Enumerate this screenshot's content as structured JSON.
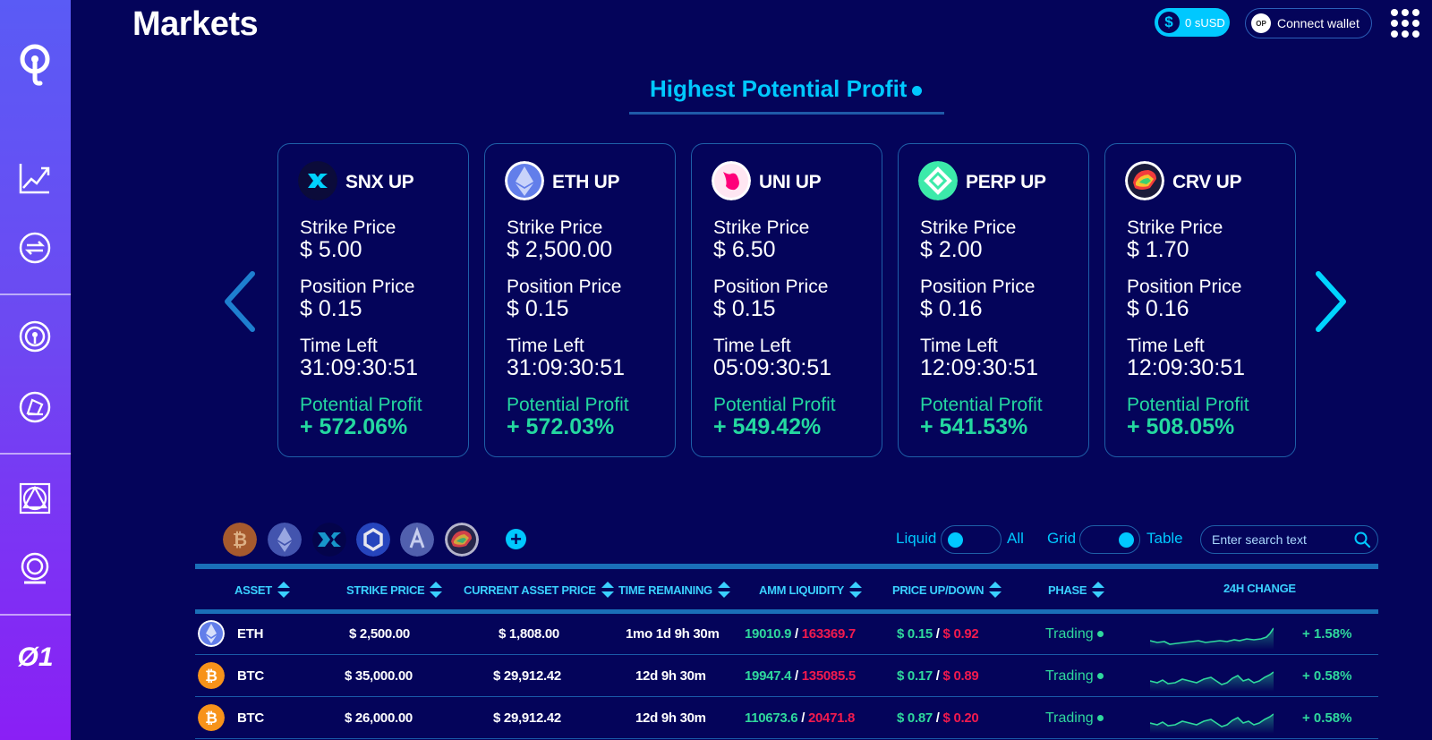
{
  "header": {
    "title": "Markets",
    "balance": "0 sUSD",
    "connect_wallet": "Connect wallet",
    "network_badge": "OP"
  },
  "sidebar": {
    "brand_text": "Ø1",
    "items": [
      "logo-icon",
      "markets-chart-icon",
      "swap-icon",
      "thales-royale-icon",
      "exotic-markets-icon",
      "staking-icon",
      "vaults-icon",
      "op-token-text"
    ]
  },
  "highlight": {
    "title": "Highest Potential Profit",
    "labels": {
      "strike": "Strike Price",
      "position": "Position Price",
      "time": "Time Left",
      "profit": "Potential Profit"
    },
    "cards": [
      {
        "name": "SNX UP",
        "strike": "$ 5.00",
        "position": "$ 0.15",
        "time": "31:09:30:51",
        "profit": "+ 572.06%"
      },
      {
        "name": "ETH UP",
        "strike": "$ 2,500.00",
        "position": "$ 0.15",
        "time": "31:09:30:51",
        "profit": "+ 572.03%"
      },
      {
        "name": "UNI UP",
        "strike": "$ 6.50",
        "position": "$ 0.15",
        "time": "05:09:30:51",
        "profit": "+ 549.42%"
      },
      {
        "name": "PERP UP",
        "strike": "$ 2.00",
        "position": "$ 0.16",
        "time": "12:09:30:51",
        "profit": "+ 541.53%"
      },
      {
        "name": "CRV UP",
        "strike": "$ 1.70",
        "position": "$ 0.16",
        "time": "12:09:30:51",
        "profit": "+ 508.05%"
      }
    ]
  },
  "filters": {
    "liquid_label": "Liquid",
    "all_label": "All",
    "grid_label": "Grid",
    "table_label": "Table",
    "search_placeholder": "Enter search text",
    "add_symbol": "+"
  },
  "table": {
    "headers": [
      "ASSET",
      "STRIKE PRICE",
      "CURRENT ASSET PRICE",
      "TIME REMAINING",
      "AMM LIQUIDITY",
      "PRICE UP/DOWN",
      "PHASE",
      "24H CHANGE"
    ],
    "rows": [
      {
        "asset": "ETH",
        "strike": "$ 2,500.00",
        "current": "$ 1,808.00",
        "time": "1mo 1d 9h 30m",
        "liq_up": "19010.9",
        "liq_down": "163369.7",
        "price_up": "$ 0.15",
        "price_down": "$ 0.92",
        "phase": "Trading",
        "change": "+ 1.58%"
      },
      {
        "asset": "BTC",
        "strike": "$ 35,000.00",
        "current": "$ 29,912.42",
        "time": "12d 9h 30m",
        "liq_up": "19947.4",
        "liq_down": "135085.5",
        "price_up": "$ 0.17",
        "price_down": "$ 0.89",
        "phase": "Trading",
        "change": "+ 0.58%"
      },
      {
        "asset": "BTC",
        "strike": "$ 26,000.00",
        "current": "$ 29,912.42",
        "time": "12d 9h 30m",
        "liq_up": "110673.6",
        "liq_down": "20471.8",
        "price_up": "$ 0.87",
        "price_down": "$ 0.20",
        "phase": "Trading",
        "change": "+ 0.58%"
      }
    ],
    "separator": "/"
  },
  "colors": {
    "background": "#04045a",
    "accent": "#00c8ff",
    "positive": "#2fd89d",
    "negative": "#f21a4e",
    "border": "#1e5fa8"
  }
}
